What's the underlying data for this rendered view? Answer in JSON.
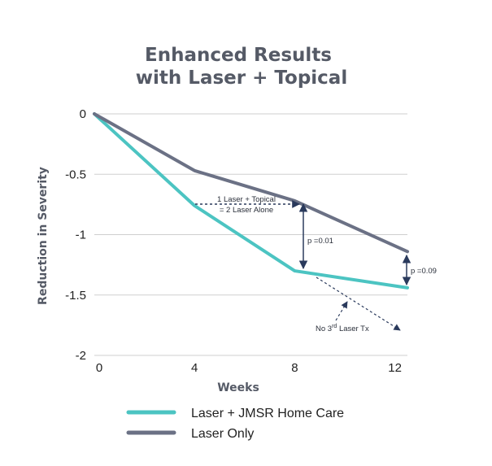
{
  "chart_data": {
    "type": "line",
    "title_lines": [
      "Enhanced Results",
      "with Laser + Topical"
    ],
    "xlabel": "Weeks",
    "ylabel": "Reduction in Severity",
    "x_ticks": [
      "0",
      "4",
      "8",
      "12"
    ],
    "y_ticks": [
      "0",
      "-0.5",
      "-1",
      "-1.5",
      "-2"
    ],
    "xlim": [
      0,
      12.5
    ],
    "ylim": [
      -2,
      0
    ],
    "grid": "horizontal",
    "legend_position": "bottom",
    "series": [
      {
        "name": "Laser + JMSR Home Care",
        "color": "#4cc4c2",
        "x": [
          0,
          4,
          8,
          12.5
        ],
        "values": [
          0,
          -0.76,
          -1.3,
          -1.44
        ]
      },
      {
        "name": "Laser Only",
        "color": "#6b7185",
        "x": [
          0,
          4,
          8,
          12.5
        ],
        "values": [
          0,
          -0.47,
          -0.72,
          -1.14
        ]
      }
    ],
    "annotations": {
      "equivalence_line1": "1 Laser + Topical",
      "equivalence_line2": "= 2 Laser Alone",
      "p_week8": "p =0.01",
      "p_week12": "p =0.09",
      "no_third_prefix": "No 3",
      "no_third_sup": "rd",
      "no_third_suffix": " Laser Tx"
    }
  }
}
